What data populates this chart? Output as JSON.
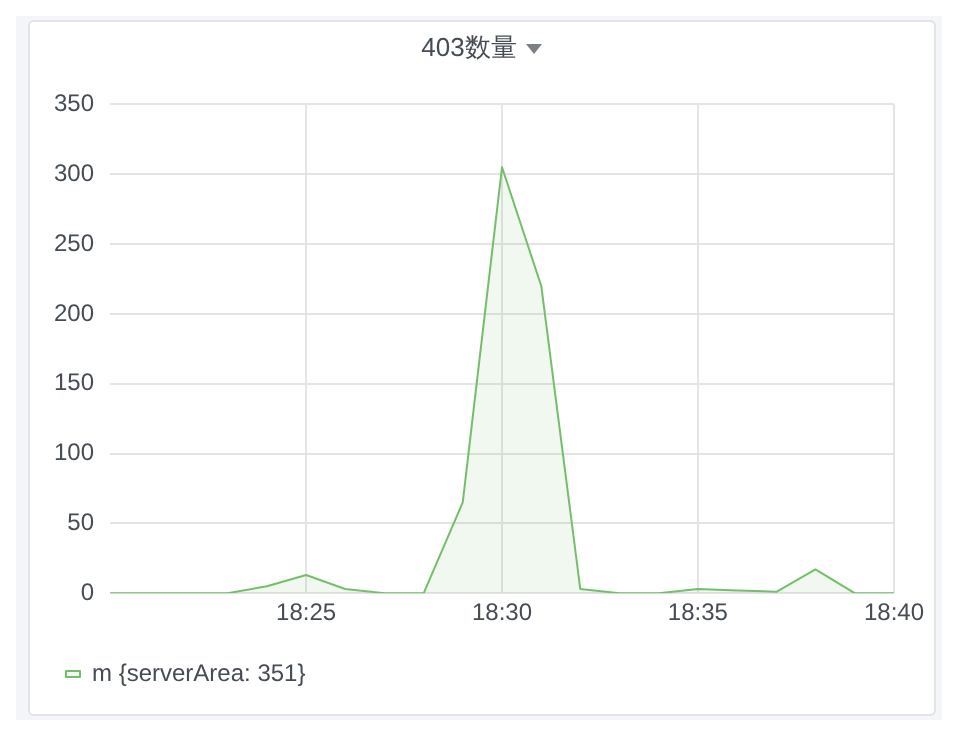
{
  "chart_data": {
    "type": "area",
    "title": "403数量",
    "x": [
      18.3333,
      18.35,
      18.3667,
      18.3833,
      18.4,
      18.4167,
      18.4333,
      18.45,
      18.4667,
      18.4833,
      18.5,
      18.5167,
      18.5333,
      18.55,
      18.5667,
      18.5833,
      18.6,
      18.6167,
      18.6333,
      18.65,
      18.6667
    ],
    "series": [
      {
        "name": "m {serverArea: 351}",
        "color": "#73bf69",
        "values": [
          0,
          0,
          0,
          0,
          5,
          13,
          3,
          0,
          0,
          65,
          305,
          220,
          3,
          0,
          0,
          3,
          2,
          1,
          17,
          0,
          0
        ]
      }
    ],
    "xlim": [
      18.3333,
      18.6667
    ],
    "xticks": [
      {
        "value": 18.4167,
        "label": "18:25"
      },
      {
        "value": 18.5,
        "label": "18:30"
      },
      {
        "value": 18.5833,
        "label": "18:35"
      },
      {
        "value": 18.6667,
        "label": "18:40"
      }
    ],
    "ylim": [
      0,
      350
    ],
    "yticks": [
      0,
      50,
      100,
      150,
      200,
      250,
      300,
      350
    ],
    "grid": true,
    "legend": "bottom left",
    "marker": "none",
    "line_style": "solid"
  }
}
